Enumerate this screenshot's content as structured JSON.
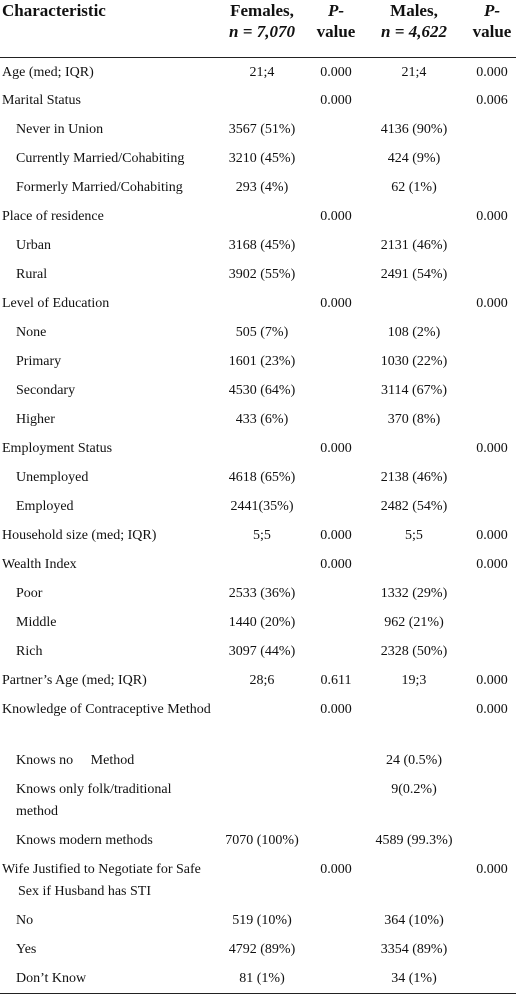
{
  "table": {
    "header": [
      [
        "Characteristic"
      ],
      [
        "Females,",
        "n = 7,070"
      ],
      [
        "P-",
        "value"
      ],
      [
        "Males,",
        "n = 4,622"
      ],
      [
        "P-",
        "value"
      ]
    ],
    "sections": [
      {
        "label": "Age (med; IQR)",
        "values": [
          "21;4",
          "0.000",
          "21;4",
          "0.000"
        ]
      },
      {
        "label": "Marital Status",
        "values": [
          null,
          "0.000",
          null,
          "0.006"
        ],
        "items": [
          {
            "label": "Never in Union",
            "values": [
              "3567 (51%)",
              null,
              "4136 (90%)",
              null
            ]
          },
          {
            "label": "Currently Married/Cohabiting",
            "values": [
              "3210 (45%)",
              null,
              "424 (9%)",
              null
            ]
          },
          {
            "label": "Formerly Married/Cohabiting",
            "values": [
              "293 (4%)",
              null,
              "62 (1%)",
              null
            ]
          }
        ]
      },
      {
        "label": "Place of residence",
        "values": [
          null,
          "0.000",
          null,
          "0.000"
        ],
        "items": [
          {
            "label": "Urban",
            "values": [
              "3168 (45%)",
              null,
              "2131 (46%)",
              null
            ]
          },
          {
            "label": "Rural",
            "values": [
              "3902 (55%)",
              null,
              "2491 (54%)",
              null
            ]
          }
        ]
      },
      {
        "label": "Level of Education",
        "values": [
          null,
          "0.000",
          null,
          "0.000"
        ],
        "items": [
          {
            "label": "None",
            "values": [
              "505 (7%)",
              null,
              "108 (2%)",
              null
            ]
          },
          {
            "label": "Primary",
            "values": [
              "1601 (23%)",
              null,
              "1030 (22%)",
              null
            ]
          },
          {
            "label": "Secondary",
            "values": [
              "4530 (64%)",
              null,
              "3114 (67%)",
              null
            ]
          },
          {
            "label": "Higher",
            "values": [
              "433 (6%)",
              null,
              "370 (8%)",
              null
            ]
          }
        ]
      },
      {
        "label": "Employment Status",
        "values": [
          null,
          "0.000",
          null,
          "0.000"
        ],
        "items": [
          {
            "label": "Unemployed",
            "values": [
              "4618 (65%)",
              null,
              "2138 (46%)",
              null
            ]
          },
          {
            "label": "Employed",
            "values": [
              "2441(35%)",
              null,
              "2482 (54%)",
              null
            ]
          }
        ]
      },
      {
        "label": "Household size (med; IQR)",
        "values": [
          "5;5",
          "0.000",
          "5;5",
          "0.000"
        ]
      },
      {
        "label": "Wealth Index",
        "values": [
          null,
          "0.000",
          null,
          "0.000"
        ],
        "items": [
          {
            "label": "Poor",
            "values": [
              "2533 (36%)",
              null,
              "1332 (29%)",
              null
            ]
          },
          {
            "label": "Middle",
            "values": [
              "1440 (20%)",
              null,
              "962 (21%)",
              null
            ]
          },
          {
            "label": "Rich",
            "values": [
              "3097 (44%)",
              null,
              "2328 (50%)",
              null
            ]
          }
        ]
      },
      {
        "label": "Partner’s Age (med; IQR)",
        "values": [
          "28;6",
          "0.611",
          "19;3",
          "0.000"
        ]
      },
      {
        "label": "Knowledge of Contraceptive Method",
        "values": [
          null,
          "0.000",
          null,
          "0.000"
        ],
        "items": [
          {
            "label": "Knows no     Method",
            "values": [
              null,
              null,
              "24 (0.5%)",
              null
            ]
          },
          {
            "label": "Knows only folk/traditional method",
            "values": [
              null,
              null,
              "9(0.2%)",
              null
            ]
          },
          {
            "label": "Knows modern methods",
            "values": [
              "7070 (100%)",
              null,
              "4589 (99.3%)",
              null
            ]
          }
        ]
      },
      {
        "label": "Wife Justified to Negotiate for Safe Sex if Husband has STI",
        "values": [
          null,
          "0.000",
          null,
          "0.000"
        ],
        "items": [
          {
            "label": "No",
            "values": [
              "519 (10%)",
              null,
              "364 (10%)",
              null
            ]
          },
          {
            "label": "Yes",
            "values": [
              "4792 (89%)",
              null,
              "3354 (89%)",
              null
            ]
          },
          {
            "label": "Don’t Know",
            "values": [
              "81 (1%)",
              null,
              "34 (1%)",
              null
            ]
          }
        ]
      }
    ]
  }
}
